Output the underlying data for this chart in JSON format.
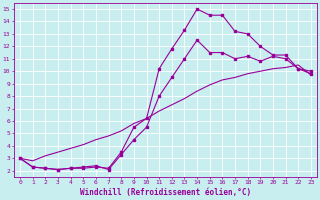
{
  "background_color": "#c8eef0",
  "line_color": "#990099",
  "grid_color": "#aadddd",
  "xlabel": "Windchill (Refroidissement éolien,°C)",
  "xlim": [
    -0.5,
    23.5
  ],
  "ylim": [
    1.5,
    15.5
  ],
  "xticks": [
    0,
    1,
    2,
    3,
    4,
    5,
    6,
    7,
    8,
    9,
    10,
    11,
    12,
    13,
    14,
    15,
    16,
    17,
    18,
    19,
    20,
    21,
    22,
    23
  ],
  "yticks": [
    2,
    3,
    4,
    5,
    6,
    7,
    8,
    9,
    10,
    11,
    12,
    13,
    14,
    15
  ],
  "line1_x": [
    0,
    1,
    2,
    3,
    4,
    5,
    6,
    7,
    8,
    9,
    10,
    11,
    12,
    13,
    14,
    15,
    16,
    17,
    18,
    19,
    20,
    21,
    22,
    23
  ],
  "line1_y": [
    3.0,
    2.3,
    2.2,
    2.1,
    2.2,
    2.2,
    2.3,
    2.2,
    3.5,
    5.5,
    6.2,
    10.2,
    11.8,
    13.3,
    15.0,
    14.5,
    14.5,
    13.2,
    13.0,
    12.0,
    11.3,
    11.3,
    10.2,
    9.8
  ],
  "line2_x": [
    0,
    1,
    2,
    3,
    4,
    5,
    6,
    7,
    8,
    9,
    10,
    11,
    12,
    13,
    14,
    15,
    16,
    17,
    18,
    19,
    20,
    21,
    22,
    23
  ],
  "line2_y": [
    3.0,
    2.3,
    2.2,
    2.1,
    2.2,
    2.3,
    2.4,
    2.1,
    3.3,
    4.5,
    5.5,
    8.0,
    9.5,
    11.0,
    12.5,
    11.5,
    11.5,
    11.0,
    11.2,
    10.8,
    11.2,
    11.0,
    10.2,
    10.0
  ],
  "line3_x": [
    0,
    1,
    2,
    3,
    4,
    5,
    6,
    7,
    8,
    9,
    10,
    11,
    12,
    13,
    14,
    15,
    16,
    17,
    18,
    19,
    20,
    21,
    22,
    23
  ],
  "line3_y": [
    3.0,
    2.8,
    3.2,
    3.5,
    3.8,
    4.1,
    4.5,
    4.8,
    5.2,
    5.8,
    6.2,
    6.8,
    7.3,
    7.8,
    8.4,
    8.9,
    9.3,
    9.5,
    9.8,
    10.0,
    10.2,
    10.3,
    10.5,
    9.7
  ]
}
